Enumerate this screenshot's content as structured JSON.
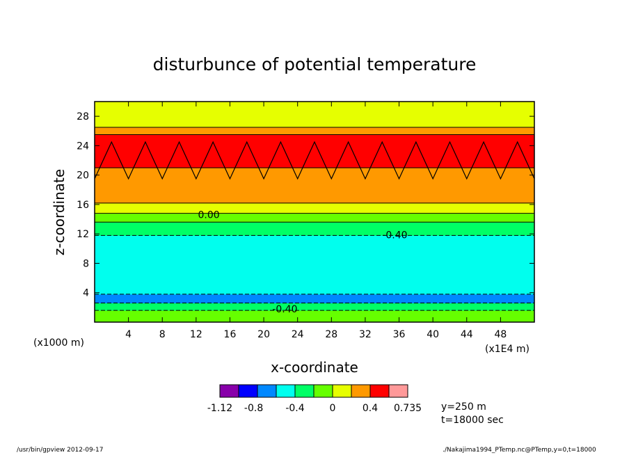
{
  "chart_data": {
    "type": "heatmap",
    "title": "disturbunce of potential temperature",
    "xlabel": "x-coordinate",
    "ylabel": "z-coordinate",
    "x_unit_left": "(x1000 m)",
    "x_unit_right": "(x1E4 m)",
    "xlim": [
      0,
      52
    ],
    "ylim": [
      0,
      30
    ],
    "xticks": [
      "4",
      "8",
      "12",
      "16",
      "20",
      "24",
      "28",
      "32",
      "36",
      "40",
      "44",
      "48"
    ],
    "yticks": [
      "4",
      "8",
      "12",
      "16",
      "20",
      "24",
      "28"
    ],
    "z_layers": [
      {
        "z_from": 0,
        "z_to": 1.6,
        "color": "#66ff00"
      },
      {
        "z_from": 1.6,
        "z_to": 2.6,
        "color": "#00ff66"
      },
      {
        "z_from": 2.6,
        "z_to": 3.8,
        "color": "#0088ff"
      },
      {
        "z_from": 3.8,
        "z_to": 11.8,
        "color": "#00ffee"
      },
      {
        "z_from": 11.8,
        "z_to": 13.6,
        "color": "#00ff66"
      },
      {
        "z_from": 13.6,
        "z_to": 14.8,
        "color": "#66ff00"
      },
      {
        "z_from": 14.8,
        "z_to": 16.2,
        "color": "#e6ff00"
      },
      {
        "z_from": 16.2,
        "z_to": 21.0,
        "color": "#ff9900"
      },
      {
        "z_from": 21.0,
        "z_to": 25.5,
        "color": "#ff0000"
      },
      {
        "z_from": 25.5,
        "z_to": 26.5,
        "color": "#ff9900"
      },
      {
        "z_from": 26.5,
        "z_to": 30,
        "color": "#e6ff00"
      }
    ],
    "contour_labels": [
      {
        "text": "0.00",
        "x": 13.5,
        "z": 14.6
      },
      {
        "text": "-0.40",
        "x": 35.5,
        "z": 11.9
      },
      {
        "text": "-0.40",
        "x": 22.5,
        "z": 1.8
      }
    ],
    "colorbar": {
      "colors": [
        "#8800aa",
        "#0000ff",
        "#0088ff",
        "#00ffee",
        "#00ff66",
        "#66ff00",
        "#e6ff00",
        "#ff9900",
        "#ff0000",
        "#ff9999"
      ],
      "labels": [
        {
          "text": "-1.12",
          "pos": 0
        },
        {
          "text": "-0.8",
          "pos": 1.8
        },
        {
          "text": "-0.4",
          "pos": 4
        },
        {
          "text": "0",
          "pos": 6
        },
        {
          "text": "0.4",
          "pos": 8
        },
        {
          "text": "0.735",
          "pos": 10
        }
      ]
    },
    "annotations": {
      "y_info": "y=250 m",
      "t_info": "t=18000 sec"
    }
  },
  "footer": {
    "left": "/usr/bin/gpview   2012-09-17",
    "right": "./Nakajima1994_PTemp.nc@PTemp,y=0,t=18000"
  }
}
